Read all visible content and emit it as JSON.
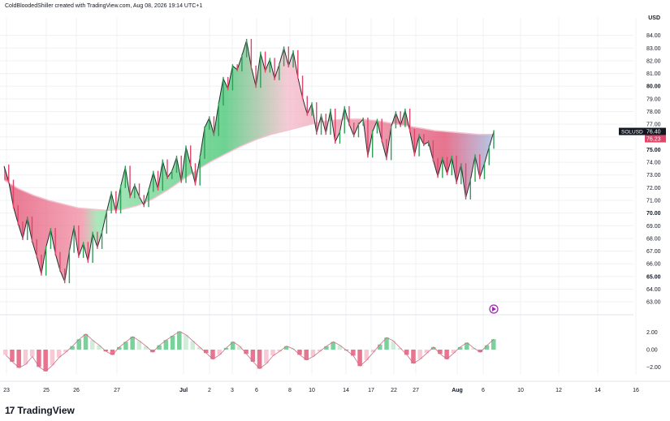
{
  "header": {
    "caption": "ColdBloodedShiller created with TradingView.com, Aug 08, 2026 19:14 UTC+1"
  },
  "brand": {
    "logo": "17",
    "name": "TradingView"
  },
  "colors": {
    "bull": "#2e9e57",
    "bear": "#e0466a",
    "grid": "#eef0f3",
    "axis_text": "#131722",
    "badge_bg": "#131722",
    "close_badge_bg": "#e0466a"
  },
  "chart_data": [
    {
      "type": "line",
      "ticker": "SOLUSD",
      "unit": "USD",
      "last_price": "76.40",
      "ma_value": "76.23",
      "y_ticks": [
        "63.00",
        "64.00",
        "65.00",
        "66.00",
        "67.00",
        "68.00",
        "69.00",
        "70.00",
        "71.00",
        "72.00",
        "73.00",
        "74.00",
        "75.00",
        "76.00",
        "77.00",
        "78.00",
        "79.00",
        "80.00",
        "81.00",
        "82.00",
        "83.00",
        "84.00"
      ],
      "y_ticks_bold": [
        "65.00",
        "70.00",
        "75.00",
        "80.00"
      ],
      "ylim": [
        62.5,
        85
      ],
      "x_labels": [
        "23",
        "25",
        "26",
        "27",
        "Jul",
        "2",
        "3",
        "6",
        "8",
        "10",
        "14",
        "17",
        "22",
        "27",
        "Aug",
        "6",
        "10",
        "12",
        "14",
        "16"
      ],
      "x_labels_bold": [
        "Jul",
        "Aug"
      ],
      "price_path": [
        73.7,
        72.5,
        70.5,
        69.2,
        68.0,
        69.6,
        67.8,
        66.6,
        65.2,
        67.3,
        68.7,
        66.8,
        65.5,
        64.6,
        67.0,
        68.9,
        66.6,
        67.6,
        66.2,
        68.4,
        67.3,
        68.5,
        70.1,
        71.6,
        70.1,
        72.1,
        73.6,
        71.3,
        72.2,
        71.3,
        70.6,
        71.8,
        73.2,
        71.9,
        74.1,
        72.8,
        73.3,
        74.4,
        72.5,
        75.2,
        73.8,
        72.3,
        74.4,
        76.7,
        77.5,
        76.2,
        78.6,
        80.6,
        79.8,
        81.6,
        81.3,
        82.4,
        83.6,
        81.5,
        80.0,
        82.6,
        81.2,
        82.1,
        80.6,
        81.7,
        83.0,
        81.6,
        82.7,
        80.7,
        79.1,
        77.8,
        78.6,
        76.3,
        77.7,
        76.3,
        78.1,
        75.6,
        76.4,
        78.3,
        77.0,
        76.1,
        77.0,
        77.4,
        74.5,
        76.4,
        77.3,
        75.7,
        74.3,
        76.8,
        77.9,
        76.9,
        78.1,
        76.5,
        74.6,
        76.1,
        75.4,
        75.6,
        74.2,
        72.9,
        74.3,
        73.1,
        74.4,
        72.4,
        73.8,
        71.2,
        72.6,
        74.5,
        72.8,
        73.9,
        75.2,
        76.4
      ],
      "ma_path": [
        72.6,
        71.9,
        71.4,
        71.0,
        70.7,
        70.4,
        70.3,
        70.2,
        70.3,
        70.6,
        71.1,
        71.8,
        72.6,
        73.4,
        74.1,
        74.7,
        75.3,
        75.8,
        76.2,
        76.5,
        76.8,
        77.1,
        77.3,
        77.4,
        77.4,
        77.3,
        77.1,
        76.9,
        76.7,
        76.5,
        76.4,
        76.3,
        76.2,
        76.2
      ],
      "oscillator": {
        "y_ticks": [
          "2.00",
          "0.00",
          "−2.00"
        ],
        "ylim": [
          -3,
          3
        ],
        "values": [
          -0.6,
          -1.4,
          -2.1,
          -1.7,
          -0.8,
          -2.0,
          -2.5,
          -1.8,
          -0.9,
          -0.3,
          0.4,
          1.2,
          1.8,
          1.1,
          0.5,
          -0.2,
          -0.6,
          0.3,
          0.9,
          1.5,
          1.0,
          0.4,
          -0.3,
          0.5,
          1.1,
          1.6,
          2.1,
          1.7,
          1.0,
          0.3,
          -0.4,
          -1.1,
          -0.6,
          0.2,
          0.9,
          0.4,
          -0.5,
          -1.4,
          -2.2,
          -1.6,
          -0.7,
          -0.2,
          0.4,
          0.1,
          -0.6,
          -1.2,
          -0.8,
          -0.2,
          0.4,
          0.9,
          0.5,
          -0.1,
          -0.7,
          -1.9,
          -1.2,
          -0.3,
          0.6,
          1.4,
          1.0,
          0.2,
          -0.6,
          -1.6,
          -1.1,
          -0.4,
          0.3,
          -0.5,
          -1.1,
          -0.4,
          0.3,
          0.8,
          0.2,
          -0.3,
          0.5,
          1.2
        ]
      }
    }
  ]
}
